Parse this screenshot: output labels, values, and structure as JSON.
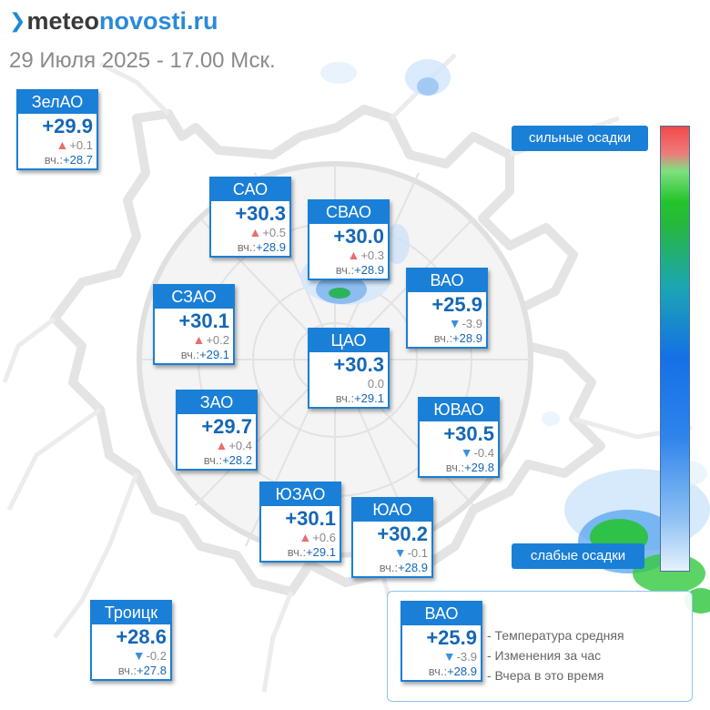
{
  "header": {
    "logo_part1": "meteo",
    "logo_part2": "novosti.ru",
    "subtitle": "29 Июля 2025 - 17.00 Мск."
  },
  "yesterday_prefix": "вч.:",
  "districts": [
    {
      "name": "ЗелАО",
      "temp": "+29.9",
      "trend": "up",
      "change": "+0.1",
      "yesterday": "+28.7"
    },
    {
      "name": "САО",
      "temp": "+30.3",
      "trend": "up",
      "change": "+0.5",
      "yesterday": "+28.9"
    },
    {
      "name": "СВАО",
      "temp": "+30.0",
      "trend": "up",
      "change": "+0.3",
      "yesterday": "+28.9"
    },
    {
      "name": "ВАО",
      "temp": "+25.9",
      "trend": "down",
      "change": "-3.9",
      "yesterday": "+28.9"
    },
    {
      "name": "СЗАО",
      "temp": "+30.1",
      "trend": "up",
      "change": "+0.2",
      "yesterday": "+29.1"
    },
    {
      "name": "ЦАО",
      "temp": "+30.3",
      "trend": "none",
      "change": "0.0",
      "yesterday": "+29.1"
    },
    {
      "name": "ЗАО",
      "temp": "+29.7",
      "trend": "up",
      "change": "+0.4",
      "yesterday": "+28.2"
    },
    {
      "name": "ЮВАО",
      "temp": "+30.5",
      "trend": "down",
      "change": "-0.4",
      "yesterday": "+29.8"
    },
    {
      "name": "ЮЗАО",
      "temp": "+30.1",
      "trend": "up",
      "change": "+0.6",
      "yesterday": "+29.1"
    },
    {
      "name": "ЮАО",
      "temp": "+30.2",
      "trend": "down",
      "change": "-0.1",
      "yesterday": "+28.9"
    },
    {
      "name": "Троицк",
      "temp": "+28.6",
      "trend": "down",
      "change": "-0.2",
      "yesterday": "+27.8"
    }
  ],
  "precip_legend": {
    "strong_label": "сильные осадки",
    "weak_label": "слабые осадки",
    "colors": [
      "#f24a4a",
      "#22c42a",
      "#1470e6",
      "#e5f1fc"
    ]
  },
  "key": {
    "sample": {
      "name": "ВАО",
      "temp": "+25.9",
      "trend": "down",
      "change": "-3.9",
      "yesterday": "+28.9"
    },
    "line1": "- Температура средняя",
    "line2": "- Изменения за час",
    "line3": "- Вчера в это время"
  },
  "colors": {
    "accent": "#1a7fd6",
    "temp_text": "#1567b7",
    "up": "#e86d6d",
    "down": "#3a8fe0"
  }
}
